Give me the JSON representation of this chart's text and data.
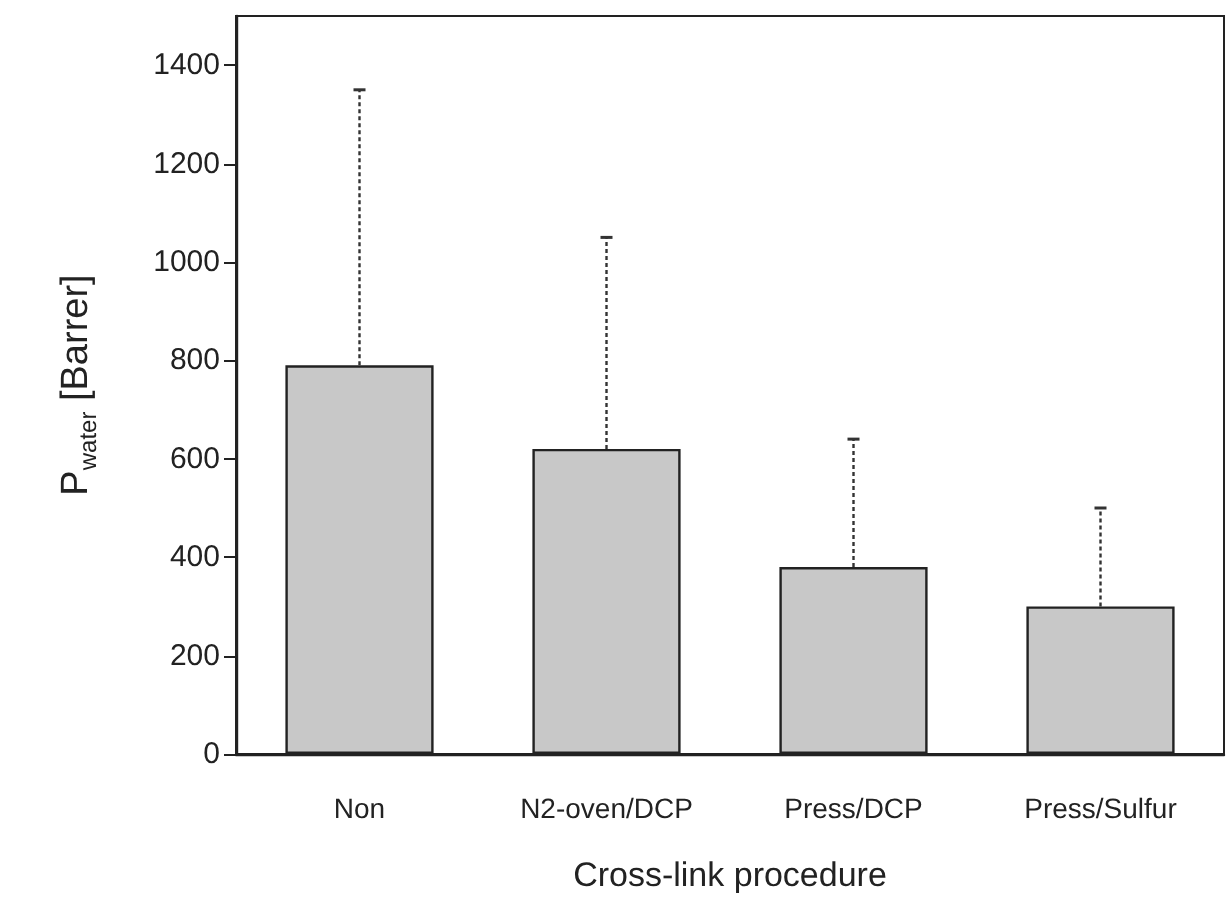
{
  "chart_data": {
    "type": "bar",
    "xlabel": "Cross-link procedure",
    "ylabel": "P$_{water}$ [Barrer]",
    "categories": [
      "Non",
      "N2-oven/DCP",
      "Press/DCP",
      "Press/Sulfur"
    ],
    "values": [
      790,
      620,
      380,
      300
    ],
    "errors": [
      [
        790,
        1350
      ],
      [
        620,
        1050
      ],
      [
        380,
        640
      ],
      [
        300,
        500
      ]
    ],
    "color": "#c8c8c8",
    "ylim": [
      0,
      1500
    ],
    "yticks": [
      0,
      200,
      400,
      600,
      800,
      1000,
      1200,
      1400
    ],
    "grid": false
  }
}
